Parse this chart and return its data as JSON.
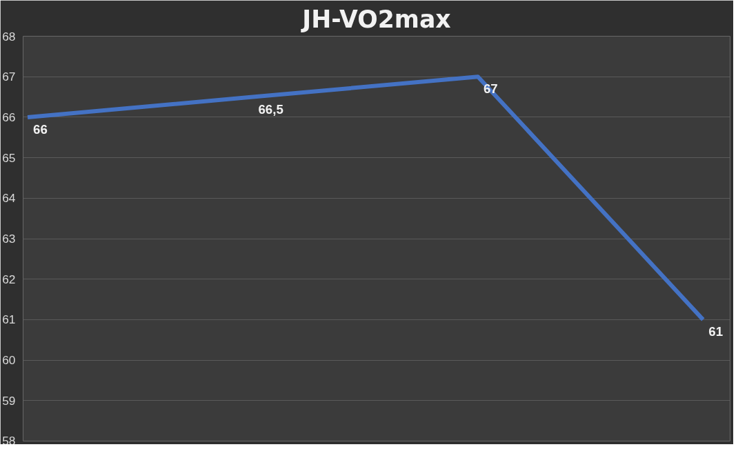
{
  "chart_data": {
    "type": "line",
    "title": "JH-VO2max",
    "categories": [
      null,
      null,
      null,
      null
    ],
    "series": [
      {
        "color": "#4472c4",
        "values": [
          66,
          66.5,
          67,
          61
        ],
        "value_labels": [
          "66",
          "66,5",
          "67",
          "61"
        ]
      }
    ],
    "ylim": [
      58,
      68
    ],
    "yticks": [
      58,
      59,
      60,
      61,
      62,
      63,
      64,
      65,
      66,
      67,
      68
    ],
    "grid": "y",
    "marker": "none",
    "line_style": "solid",
    "tick_labels": "y"
  }
}
